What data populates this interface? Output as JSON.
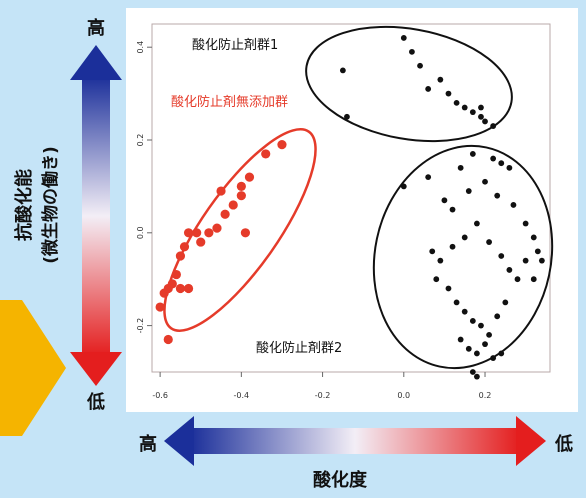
{
  "chart_data": {
    "type": "scatter",
    "xlim": [
      -0.62,
      0.36
    ],
    "ylim": [
      -0.3,
      0.45
    ],
    "x_ticks": [
      -0.6,
      -0.4,
      -0.2,
      0.0,
      0.2
    ],
    "x_tick_labels": [
      "-0.6",
      "-0.4",
      "-0.2",
      "0.0",
      "0.2"
    ],
    "y_ticks": [
      -0.2,
      0.0,
      0.2,
      0.4
    ],
    "y_tick_labels": [
      "-0.2",
      "0.0",
      "0.2",
      "0.4"
    ],
    "grid": false,
    "series": [
      {
        "name": "酸化防止剤無添加群",
        "color": "#e53b2a",
        "points": [
          [
            -0.6,
            -0.16
          ],
          [
            -0.59,
            -0.13
          ],
          [
            -0.58,
            -0.23
          ],
          [
            -0.58,
            -0.12
          ],
          [
            -0.57,
            -0.11
          ],
          [
            -0.56,
            -0.09
          ],
          [
            -0.55,
            -0.12
          ],
          [
            -0.55,
            -0.05
          ],
          [
            -0.54,
            -0.03
          ],
          [
            -0.53,
            -0.12
          ],
          [
            -0.53,
            0.0
          ],
          [
            -0.51,
            0.0
          ],
          [
            -0.5,
            -0.02
          ],
          [
            -0.48,
            0.0
          ],
          [
            -0.46,
            0.01
          ],
          [
            -0.45,
            0.09
          ],
          [
            -0.44,
            0.04
          ],
          [
            -0.42,
            0.06
          ],
          [
            -0.4,
            0.1
          ],
          [
            -0.4,
            0.08
          ],
          [
            -0.39,
            0.0
          ],
          [
            -0.38,
            0.12
          ],
          [
            -0.34,
            0.17
          ],
          [
            -0.3,
            0.19
          ]
        ]
      },
      {
        "name": "酸化防止剤群1",
        "color": "#111111",
        "points": [
          [
            -0.15,
            0.35
          ],
          [
            -0.14,
            0.25
          ],
          [
            0.0,
            0.42
          ],
          [
            0.02,
            0.39
          ],
          [
            0.04,
            0.36
          ],
          [
            0.06,
            0.31
          ],
          [
            0.09,
            0.33
          ],
          [
            0.11,
            0.3
          ],
          [
            0.13,
            0.28
          ],
          [
            0.15,
            0.27
          ],
          [
            0.17,
            0.26
          ],
          [
            0.19,
            0.25
          ],
          [
            0.2,
            0.24
          ],
          [
            0.22,
            0.23
          ],
          [
            0.19,
            0.27
          ]
        ]
      },
      {
        "name": "酸化防止剤群2",
        "color": "#111111",
        "points": [
          [
            0.0,
            0.1
          ],
          [
            0.06,
            0.12
          ],
          [
            0.14,
            0.14
          ],
          [
            0.17,
            0.17
          ],
          [
            0.22,
            0.16
          ],
          [
            0.24,
            0.15
          ],
          [
            0.26,
            0.14
          ],
          [
            0.1,
            0.07
          ],
          [
            0.12,
            0.05
          ],
          [
            0.16,
            0.09
          ],
          [
            0.2,
            0.11
          ],
          [
            0.23,
            0.08
          ],
          [
            0.27,
            0.06
          ],
          [
            0.3,
            0.02
          ],
          [
            0.32,
            -0.01
          ],
          [
            0.07,
            -0.04
          ],
          [
            0.09,
            -0.06
          ],
          [
            0.12,
            -0.03
          ],
          [
            0.15,
            -0.01
          ],
          [
            0.18,
            0.02
          ],
          [
            0.21,
            -0.02
          ],
          [
            0.24,
            -0.05
          ],
          [
            0.26,
            -0.08
          ],
          [
            0.28,
            -0.1
          ],
          [
            0.3,
            -0.06
          ],
          [
            0.33,
            -0.04
          ],
          [
            0.34,
            -0.06
          ],
          [
            0.32,
            -0.1
          ],
          [
            0.08,
            -0.1
          ],
          [
            0.11,
            -0.12
          ],
          [
            0.13,
            -0.15
          ],
          [
            0.15,
            -0.17
          ],
          [
            0.17,
            -0.19
          ],
          [
            0.19,
            -0.2
          ],
          [
            0.21,
            -0.22
          ],
          [
            0.23,
            -0.18
          ],
          [
            0.25,
            -0.15
          ],
          [
            0.14,
            -0.23
          ],
          [
            0.16,
            -0.25
          ],
          [
            0.18,
            -0.26
          ],
          [
            0.2,
            -0.24
          ],
          [
            0.22,
            -0.27
          ],
          [
            0.24,
            -0.26
          ],
          [
            0.17,
            -0.3
          ],
          [
            0.18,
            -0.31
          ]
        ]
      }
    ]
  },
  "labels": {
    "group1": "酸化防止剤群1",
    "group2": "酸化防止剤群2",
    "no_additive": "酸化防止剤無添加群",
    "antioxidant_line1": "抗酸化能",
    "antioxidant_line2": "(微生物の働き)",
    "high_top": "高",
    "low_bottom": "低",
    "high_left": "高",
    "low_right": "低",
    "oxidation_degree": "酸化度"
  },
  "colors": {
    "background": "#c5e4f7",
    "red_cluster": "#e53b2a",
    "black_cluster": "#111111",
    "arrow_blue": "#1b2f9a",
    "arrow_red": "#e41e1e",
    "chevron": "#f5b400"
  }
}
